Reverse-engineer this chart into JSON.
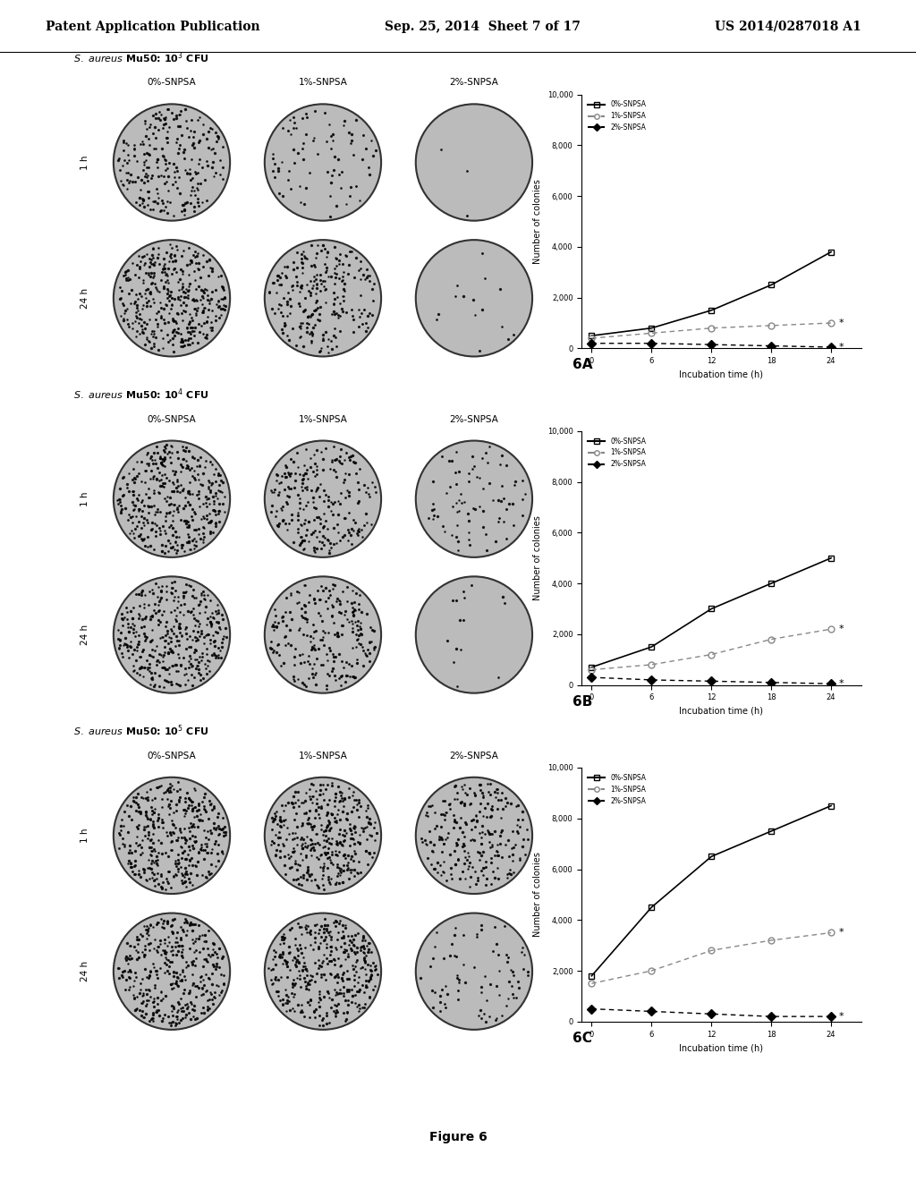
{
  "page_header_left": "Patent Application Publication",
  "page_header_mid": "Sep. 25, 2014  Sheet 7 of 17",
  "page_header_right": "US 2014/0287018 A1",
  "figure_caption": "Figure 6",
  "panels": [
    {
      "label": "6A",
      "title_exp": "3",
      "col_labels": [
        "0%-SNPSA",
        "1%-SNPSA",
        "2%-SNPSA"
      ],
      "row_labels": [
        "1 h",
        "24 h"
      ],
      "graph": {
        "x": [
          0,
          6,
          12,
          18,
          24
        ],
        "series": [
          {
            "label": "0%-SNPSA",
            "y": [
              500,
              800,
              1500,
              2500,
              3800
            ]
          },
          {
            "label": "1%-SNPSA",
            "y": [
              400,
              600,
              800,
              900,
              1000
            ]
          },
          {
            "label": "2%-SNPSA",
            "y": [
              200,
              200,
              150,
              100,
              50
            ]
          }
        ],
        "ylabel": "Number of colonies",
        "xlabel": "Incubation time (h)",
        "ylim": [
          0,
          10000
        ],
        "yticks": [
          0,
          2000,
          4000,
          6000,
          8000,
          10000
        ],
        "xticks": [
          0,
          6,
          12,
          18,
          24
        ],
        "asterisk_series": [
          1,
          2
        ]
      }
    },
    {
      "label": "6B",
      "title_exp": "4",
      "col_labels": [
        "0%-SNPSA",
        "1%-SNPSA",
        "2%-SNPSA"
      ],
      "row_labels": [
        "1 h",
        "24 h"
      ],
      "graph": {
        "x": [
          0,
          6,
          12,
          18,
          24
        ],
        "series": [
          {
            "label": "0%-SNPSA",
            "y": [
              700,
              1500,
              3000,
              4000,
              5000
            ]
          },
          {
            "label": "1%-SNPSA",
            "y": [
              600,
              800,
              1200,
              1800,
              2200
            ]
          },
          {
            "label": "2%-SNPSA",
            "y": [
              300,
              200,
              150,
              100,
              50
            ]
          }
        ],
        "ylabel": "Number of colonies",
        "xlabel": "Incubation time (h)",
        "ylim": [
          0,
          10000
        ],
        "yticks": [
          0,
          2000,
          4000,
          6000,
          8000,
          10000
        ],
        "xticks": [
          0,
          6,
          12,
          18,
          24
        ],
        "asterisk_series": [
          1,
          2
        ]
      }
    },
    {
      "label": "6C",
      "title_exp": "5",
      "col_labels": [
        "0%-SNPSA",
        "1%-SNPSA",
        "2%-SNPSA"
      ],
      "row_labels": [
        "1 h",
        "24 h"
      ],
      "graph": {
        "x": [
          0,
          6,
          12,
          18,
          24
        ],
        "series": [
          {
            "label": "0%-SNPSA",
            "y": [
              1800,
              4500,
              6500,
              7500,
              8500
            ]
          },
          {
            "label": "1%-SNPSA",
            "y": [
              1500,
              2000,
              2800,
              3200,
              3500
            ]
          },
          {
            "label": "2%-SNPSA",
            "y": [
              500,
              400,
              300,
              200,
              200
            ]
          }
        ],
        "ylabel": "Number of colonies",
        "xlabel": "Incubation time (h)",
        "ylim": [
          0,
          10000
        ],
        "yticks": [
          0,
          2000,
          4000,
          6000,
          8000,
          10000
        ],
        "xticks": [
          0,
          6,
          12,
          18,
          24
        ],
        "asterisk_series": [
          1,
          2
        ]
      }
    }
  ],
  "bg_color": "#ffffff",
  "text_color": "#000000"
}
